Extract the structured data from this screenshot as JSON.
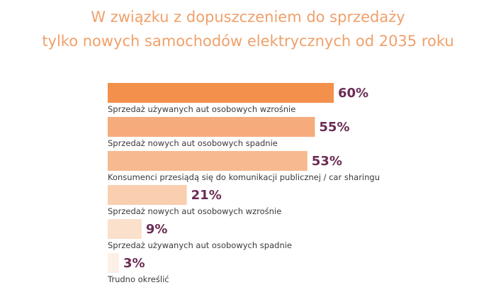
{
  "title_lines": [
    "W związku z dopuszczeniem do sprzedaży",
    "tylko nowych samochodów elektrycznych od 2035 roku"
  ],
  "chart_data": {
    "type": "bar",
    "orientation": "horizontal",
    "title": "W związku z dopuszczeniem do sprzedaży tylko nowych samochodów elektrycznych od 2035 roku",
    "categories": [
      "Sprzedaż używanych aut osobowych wzrośnie",
      "Sprzedaż nowych aut osobowych spadnie",
      "Konsumenci przesiądą się do komunikacji publicznej / car sharingu",
      "Sprzedaż nowych aut osobowych wzrośnie",
      "Sprzedaż używanych aut osobowych spadnie",
      "Trudno określić"
    ],
    "values": [
      60,
      55,
      53,
      21,
      9,
      3
    ],
    "value_labels": [
      "60%",
      "55%",
      "53%",
      "21%",
      "9%",
      "3%"
    ],
    "unit": "%",
    "colors": [
      "#f2904c",
      "#f5ab7c",
      "#f7b98f",
      "#f9cfb0",
      "#fbe0cc",
      "#fdf0e6"
    ],
    "label_color": "#6b2c54",
    "title_color": "#f0a06a",
    "xlim": [
      0,
      60
    ],
    "grid": false,
    "legend": "none"
  }
}
